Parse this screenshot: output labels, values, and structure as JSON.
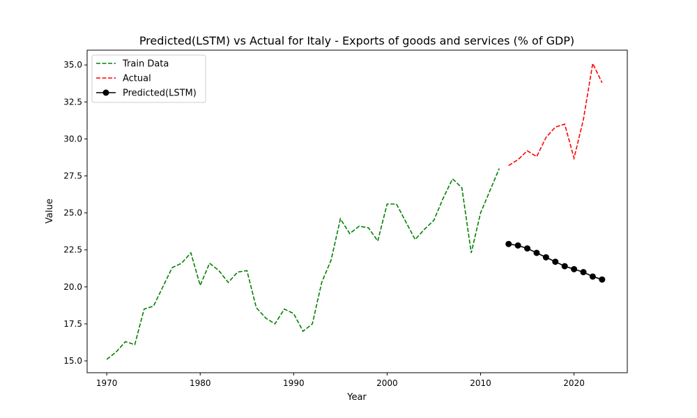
{
  "chart_data": {
    "type": "line",
    "title": "Predicted(LSTM) vs Actual for Italy - Exports of goods and services (% of GDP)",
    "xlabel": "Year",
    "ylabel": "Value",
    "xlim": [
      1967.9,
      2025.7
    ],
    "ylim": [
      14.2,
      36.0
    ],
    "xticks": [
      1970,
      1980,
      1990,
      2000,
      2010,
      2020
    ],
    "yticks": [
      15.0,
      17.5,
      20.0,
      22.5,
      25.0,
      27.5,
      30.0,
      32.5,
      35.0
    ],
    "grid": false,
    "legend_position": "top-left",
    "series": [
      {
        "name": "Train Data",
        "color": "#008000",
        "style": "dashed",
        "x": [
          1970,
          1971,
          1972,
          1973,
          1974,
          1975,
          1976,
          1977,
          1978,
          1979,
          1980,
          1981,
          1982,
          1983,
          1984,
          1985,
          1986,
          1987,
          1988,
          1989,
          1990,
          1991,
          1992,
          1993,
          1994,
          1995,
          1996,
          1997,
          1998,
          1999,
          2000,
          2001,
          2002,
          2003,
          2004,
          2005,
          2006,
          2007,
          2008,
          2009,
          2010,
          2011,
          2012
        ],
        "y": [
          15.1,
          15.6,
          16.3,
          16.1,
          18.5,
          18.7,
          20.0,
          21.3,
          21.6,
          22.3,
          20.1,
          21.6,
          21.1,
          20.3,
          21.0,
          21.1,
          18.6,
          17.9,
          17.5,
          18.5,
          18.2,
          17.0,
          17.5,
          20.3,
          21.8,
          24.6,
          23.6,
          24.1,
          24.0,
          23.1,
          25.6,
          25.6,
          24.4,
          23.2,
          23.9,
          24.5,
          26.0,
          27.3,
          26.7,
          22.3,
          25.0,
          26.5,
          28.0
        ]
      },
      {
        "name": "Actual",
        "color": "#ff0000",
        "style": "dashed",
        "x": [
          2013,
          2014,
          2015,
          2016,
          2017,
          2018,
          2019,
          2020,
          2021,
          2022,
          2023
        ],
        "y": [
          28.2,
          28.6,
          29.2,
          28.8,
          30.1,
          30.8,
          31.0,
          28.7,
          31.3,
          35.1,
          33.8
        ]
      },
      {
        "name": "Predicted(LSTM)",
        "color": "#000000",
        "style": "solid-marker",
        "x": [
          2013,
          2014,
          2015,
          2016,
          2017,
          2018,
          2019,
          2020,
          2021,
          2022,
          2023
        ],
        "y": [
          22.9,
          22.8,
          22.6,
          22.3,
          22.0,
          21.7,
          21.4,
          21.2,
          21.0,
          20.7,
          20.5
        ]
      }
    ]
  }
}
